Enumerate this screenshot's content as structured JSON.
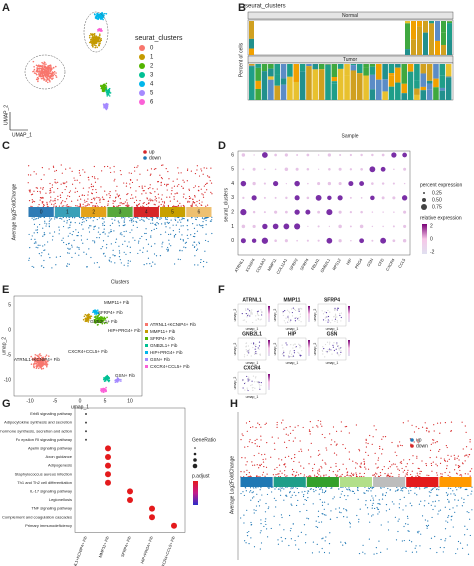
{
  "panels": {
    "A": {
      "letter": "A",
      "legend_title": "seurat_clusters",
      "legend": [
        "0",
        "1",
        "2",
        "3",
        "4",
        "5",
        "6"
      ],
      "colors": [
        "#f8766d",
        "#c49a00",
        "#53b400",
        "#00c094",
        "#00b6eb",
        "#a58aff",
        "#fb61d7"
      ],
      "x_label": "UMAP_1",
      "y_label": "UMAP_2"
    },
    "B": {
      "letter": "B",
      "title": "seurat_clusters",
      "strips": [
        "Normal",
        "Tumor"
      ],
      "y_label": "Percent of cells",
      "x_label": "Sample"
    },
    "C": {
      "letter": "C",
      "legend": [
        "up",
        "down"
      ],
      "y_label": "Average log2FoldChange",
      "x_label": "Clusters",
      "clusters": [
        "0",
        "1",
        "2",
        "3",
        "4",
        "5",
        "6"
      ]
    },
    "D": {
      "letter": "D",
      "y_label": "seurat_clusters",
      "yticks": [
        "0",
        "1",
        "2",
        "3",
        "4",
        "5",
        "6"
      ],
      "genes": [
        "ATRNL1",
        "KCNIP4",
        "COL6A3",
        "MMP11",
        "COL11A1",
        "SFRP2",
        "SFRP4",
        "FBLN1",
        "GNB2L1",
        "RPS12",
        "HIP",
        "PRG4",
        "GSN",
        "CFD",
        "CXCR4",
        "CCL5"
      ],
      "size_title": "percent expression",
      "sizes": [
        "0.25",
        "0.50",
        "0.75"
      ],
      "color_title": "relative expression",
      "colors": [
        "2",
        "0",
        "-2"
      ]
    },
    "E": {
      "letter": "E",
      "labels": [
        "ATRNL1+KCNIP4+ Fib",
        "MMP11+ Fib",
        "SFRP4+ Fib",
        "GNB2L1+ Fib",
        "HIP+PRG4+ Fib",
        "GSN+ Fib",
        "CXCR4+CCL5+ Fib"
      ],
      "x_label": "umap_1",
      "y_label": "umap_2",
      "xticks": [
        "-10",
        "-5",
        "0",
        "5",
        "10"
      ],
      "yticks": [
        "5",
        "0",
        "-5",
        "-10"
      ]
    },
    "F": {
      "letter": "F",
      "genes": [
        "ATRNL1",
        "MMP11",
        "SFRP4",
        "GNB2L1",
        "HIP",
        "GSN",
        "CXCR4"
      ],
      "x_label": "umap_1",
      "y_label": "umap_2"
    },
    "G": {
      "letter": "G",
      "pathways": [
        "ErbB signaling pathway",
        "Adipocytokine synthesis and secretion",
        "Growth hormone synthesis, secretion and action",
        "Fc epsilon RI signaling pathway",
        "Apelin signaling pathway",
        "Axon guidance",
        "Adipogenesis",
        "Staphylococcus aureus infection",
        "Th1 and Th2 cell differentiation",
        "IL-17 signaling pathway",
        "Legionellosis",
        "TNF signaling pathway",
        "Complement and coagulation cascades",
        "Primary immunodeficiency"
      ],
      "groups": [
        "ATRNL1+KCNIP4+ Fib",
        "MMP11+ Fib",
        "SFRP4+ Fib",
        "HIP+PRG4+ Fib",
        "CXCR4+CCL5+ Fib"
      ],
      "size_title": "GeneRatio",
      "color_title": "p.adjust"
    },
    "H": {
      "letter": "H",
      "legend": [
        "up",
        "down"
      ],
      "y_label": "Average Log2FoldChange"
    }
  }
}
